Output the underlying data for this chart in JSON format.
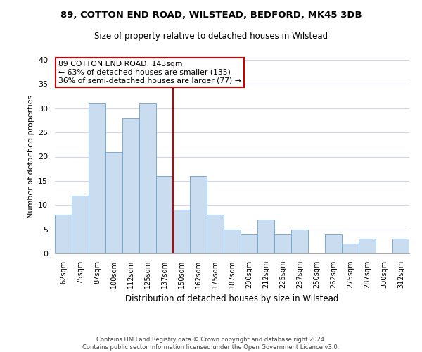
{
  "title": "89, COTTON END ROAD, WILSTEAD, BEDFORD, MK45 3DB",
  "subtitle": "Size of property relative to detached houses in Wilstead",
  "xlabel": "Distribution of detached houses by size in Wilstead",
  "ylabel": "Number of detached properties",
  "bin_labels": [
    "62sqm",
    "75sqm",
    "87sqm",
    "100sqm",
    "112sqm",
    "125sqm",
    "137sqm",
    "150sqm",
    "162sqm",
    "175sqm",
    "187sqm",
    "200sqm",
    "212sqm",
    "225sqm",
    "237sqm",
    "250sqm",
    "262sqm",
    "275sqm",
    "287sqm",
    "300sqm",
    "312sqm"
  ],
  "bar_heights": [
    8,
    12,
    31,
    21,
    28,
    31,
    16,
    9,
    16,
    8,
    5,
    4,
    7,
    4,
    5,
    0,
    4,
    2,
    3,
    0,
    3
  ],
  "bar_color": "#c9dcf0",
  "bar_edge_color": "#7aaad0",
  "vline_x": 6.5,
  "vline_color": "#cc0000",
  "ylim": [
    0,
    40
  ],
  "yticks": [
    0,
    5,
    10,
    15,
    20,
    25,
    30,
    35,
    40
  ],
  "annotation_title": "89 COTTON END ROAD: 143sqm",
  "annotation_line1": "← 63% of detached houses are smaller (135)",
  "annotation_line2": "36% of semi-detached houses are larger (77) →",
  "annotation_box_color": "#ffffff",
  "annotation_box_edge": "#cc0000",
  "footnote1": "Contains HM Land Registry data © Crown copyright and database right 2024.",
  "footnote2": "Contains public sector information licensed under the Open Government Licence v3.0."
}
